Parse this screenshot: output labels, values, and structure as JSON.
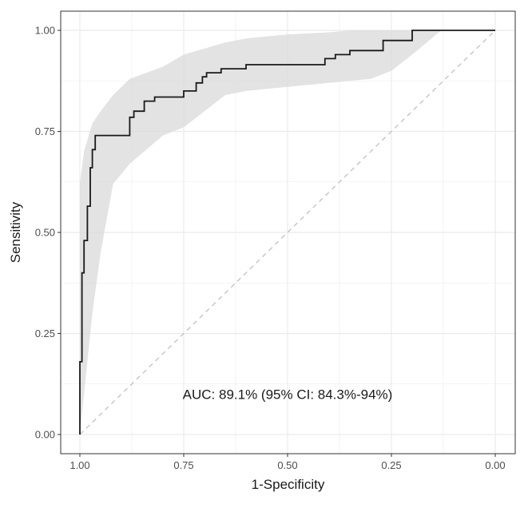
{
  "chart_data": {
    "type": "line",
    "xlabel": "1-Specificity",
    "ylabel": "Sensitivity",
    "x_reversed": true,
    "xlim": [
      1.0,
      0.0
    ],
    "ylim": [
      0.0,
      1.0
    ],
    "x_ticks": [
      1.0,
      0.75,
      0.5,
      0.25,
      0.0
    ],
    "x_tick_labels": [
      "1.00",
      "0.75",
      "0.50",
      "0.25",
      "0.00"
    ],
    "y_ticks": [
      0.0,
      0.25,
      0.5,
      0.75,
      1.0
    ],
    "y_tick_labels": [
      "0.00",
      "0.25",
      "0.50",
      "0.75",
      "1.00"
    ],
    "grid": true,
    "annotation": "AUC: 89.1% (95% CI: 84.3%-94%)",
    "roc_curve": {
      "x": [
        1.0,
        1.0,
        0.995,
        0.995,
        0.99,
        0.99,
        0.982,
        0.982,
        0.975,
        0.975,
        0.97,
        0.97,
        0.963,
        0.963,
        0.95,
        0.95,
        0.935,
        0.935,
        0.88,
        0.88,
        0.87,
        0.87,
        0.845,
        0.845,
        0.82,
        0.82,
        0.75,
        0.75,
        0.72,
        0.72,
        0.705,
        0.705,
        0.695,
        0.695,
        0.66,
        0.66,
        0.6,
        0.6,
        0.41,
        0.41,
        0.385,
        0.385,
        0.35,
        0.35,
        0.27,
        0.27,
        0.2,
        0.2,
        0.0
      ],
      "y": [
        0.0,
        0.18,
        0.18,
        0.4,
        0.4,
        0.48,
        0.48,
        0.565,
        0.565,
        0.66,
        0.66,
        0.705,
        0.705,
        0.74,
        0.74,
        0.74,
        0.74,
        0.74,
        0.74,
        0.785,
        0.785,
        0.8,
        0.8,
        0.825,
        0.825,
        0.835,
        0.835,
        0.85,
        0.85,
        0.87,
        0.87,
        0.885,
        0.885,
        0.895,
        0.895,
        0.905,
        0.905,
        0.915,
        0.915,
        0.93,
        0.93,
        0.94,
        0.94,
        0.95,
        0.95,
        0.975,
        0.975,
        1.0,
        1.0
      ]
    },
    "confidence_band": {
      "x": [
        1.0,
        0.99,
        0.97,
        0.95,
        0.92,
        0.88,
        0.8,
        0.75,
        0.7,
        0.65,
        0.6,
        0.5,
        0.4,
        0.35,
        0.3,
        0.25,
        0.2,
        0.13,
        0.0
      ],
      "lower": [
        0.0,
        0.1,
        0.3,
        0.45,
        0.62,
        0.67,
        0.74,
        0.76,
        0.8,
        0.84,
        0.85,
        0.86,
        0.87,
        0.875,
        0.88,
        0.9,
        0.94,
        1.0,
        1.0
      ],
      "upper": [
        0.62,
        0.7,
        0.77,
        0.8,
        0.84,
        0.88,
        0.91,
        0.94,
        0.955,
        0.97,
        0.98,
        0.99,
        0.995,
        1.0,
        1.0,
        1.0,
        1.0,
        1.0,
        1.0
      ]
    },
    "reference_line": {
      "x": [
        1.0,
        0.0
      ],
      "y": [
        0.0,
        1.0
      ]
    },
    "colors": {
      "curve": "#1a1a1a",
      "band": "#d9d9d9",
      "reference": "#c8c8c8",
      "grid": "#ebebeb",
      "frame": "#333333"
    }
  }
}
